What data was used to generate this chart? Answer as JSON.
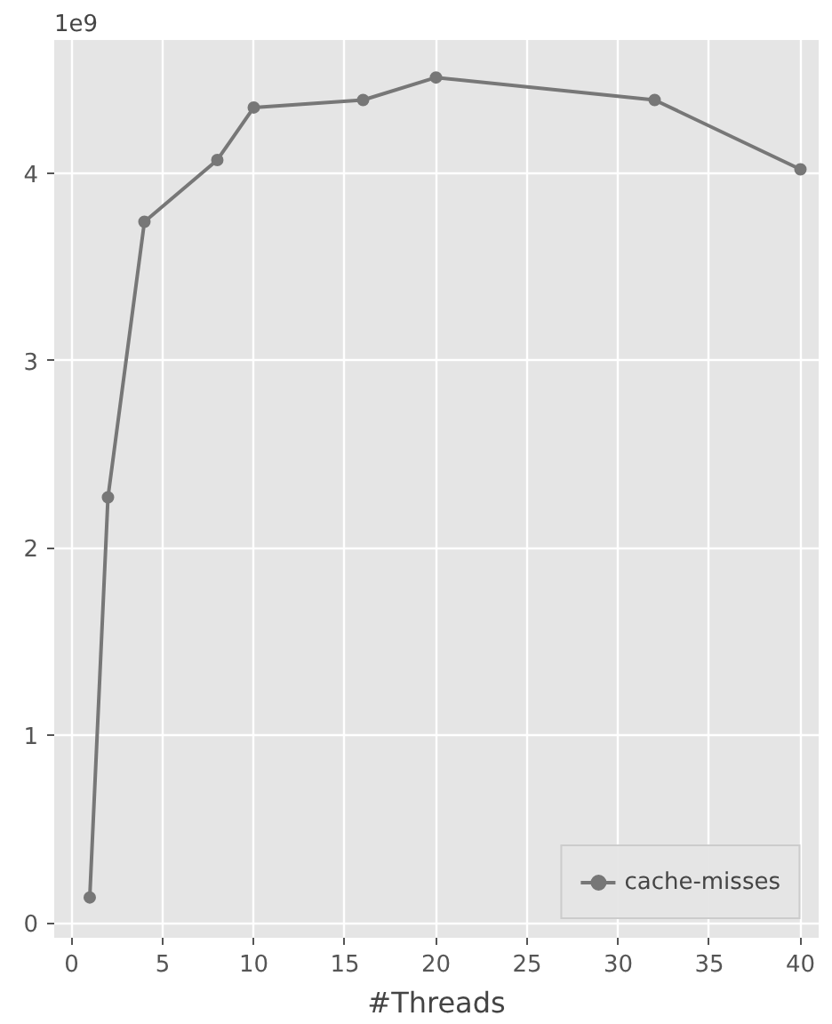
{
  "chart_data": {
    "type": "line",
    "xlabel": "#Threads",
    "annotations": [
      "1e9"
    ],
    "x": [
      1,
      2,
      4,
      8,
      10,
      16,
      20,
      32,
      40
    ],
    "series": [
      {
        "name": "cache-misses",
        "color": "#777777",
        "values": [
          0.135,
          2.27,
          3.74,
          4.07,
          4.35,
          4.39,
          4.51,
          4.39,
          4.02
        ]
      }
    ],
    "xlim": [
      -0.95,
      41
    ],
    "ylim": [
      -0.08,
      4.71
    ],
    "xticks": [
      0,
      5,
      10,
      15,
      20,
      25,
      30,
      35,
      40
    ],
    "yticks": [
      0,
      1,
      2,
      3,
      4
    ],
    "grid": true,
    "legend": "bottom right",
    "marker": "circle",
    "line_style": "solid"
  }
}
